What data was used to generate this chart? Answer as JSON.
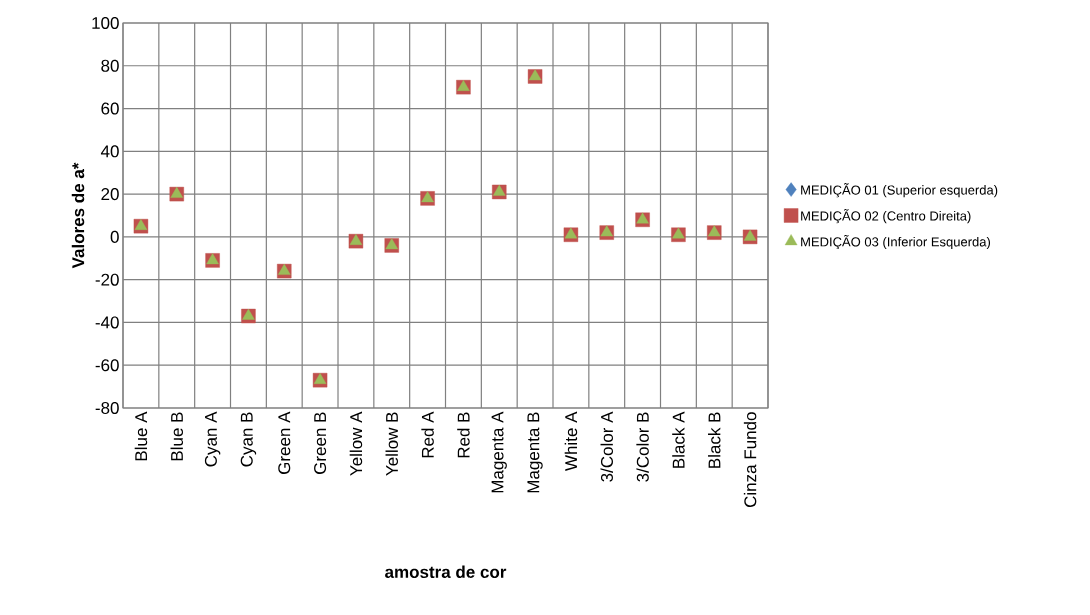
{
  "chart_data": {
    "type": "scatter",
    "xlabel": "amostra de cor",
    "ylabel": "Valores de a*",
    "categories": [
      "Blue A",
      "Blue B",
      "Cyan A",
      "Cyan B",
      "Green A",
      "Green B",
      "Yellow A",
      "Yellow B",
      "Red A",
      "Red B",
      "Magenta A",
      "Magenta B",
      "White A",
      "3/Color A",
      "3/Color B",
      "Black A",
      "Black B",
      "Cinza Fundo"
    ],
    "series": [
      {
        "name": "MEDIÇÃO 01  (Superior esquerda)",
        "color": "#4f81bd",
        "marker": "diamond",
        "values": [
          null,
          null,
          null,
          null,
          null,
          null,
          null,
          null,
          null,
          null,
          null,
          null,
          null,
          null,
          null,
          null,
          null,
          null
        ]
      },
      {
        "name": "MEDIÇÃO 02 (Centro Direita)",
        "color": "#c0504d",
        "marker": "square",
        "values": [
          5,
          20,
          -11,
          -37,
          -16,
          -67,
          -2,
          -4,
          18,
          70,
          21,
          75,
          1,
          2,
          8,
          1,
          2,
          0
        ]
      },
      {
        "name": "MEDIÇÃO 03 (Inferior Esquerda)",
        "color": "#9bbb59",
        "marker": "triangle",
        "values": [
          5,
          20,
          -11,
          -37,
          -16,
          -67,
          -2,
          -4,
          18,
          70,
          21,
          75,
          1,
          2,
          8,
          1,
          2,
          0
        ]
      }
    ],
    "ylim": [
      -80,
      100
    ],
    "yticks": [
      -80,
      -60,
      -40,
      -20,
      0,
      20,
      40,
      60,
      80,
      100
    ],
    "grid": true,
    "legend": "right"
  }
}
